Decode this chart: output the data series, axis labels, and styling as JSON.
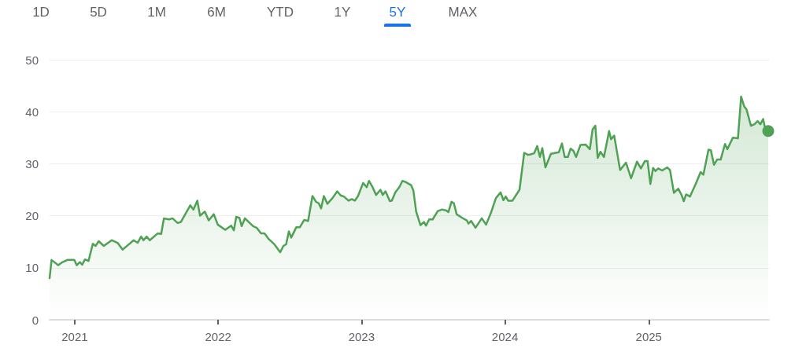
{
  "chart_data": {
    "type": "area",
    "annotations": [
      "1D",
      "5D",
      "1M",
      "6M",
      "YTD",
      "1Y",
      "5Y",
      "MAX"
    ],
    "xlim": [
      "2020-10-29",
      "2025-11-03"
    ],
    "xticks": [
      {
        "value": "2021",
        "label": "2021"
      },
      {
        "value": "2022",
        "label": "2022"
      },
      {
        "value": "2023",
        "label": "2023"
      },
      {
        "value": "2024",
        "label": "2024"
      },
      {
        "value": "2025",
        "label": "2025"
      }
    ],
    "ylim": [
      0,
      50
    ],
    "yticks": [
      0,
      10,
      20,
      30,
      40,
      50
    ],
    "grid": "y",
    "marker": "none",
    "line_style": "solid",
    "series": [
      {
        "color": "#4fa154",
        "x": [
          "2020-10-29",
          "2020-11-03",
          "2020-11-20",
          "2020-11-29",
          "2020-12-13",
          "2020-12-31",
          "2021-01-06",
          "2021-01-14",
          "2021-01-20",
          "2021-01-27",
          "2021-02-05",
          "2021-02-16",
          "2021-02-23",
          "2021-03-03",
          "2021-03-16",
          "2021-04-05",
          "2021-04-20",
          "2021-05-03",
          "2021-05-31",
          "2021-06-10",
          "2021-06-19",
          "2021-06-25",
          "2021-07-03",
          "2021-07-11",
          "2021-07-31",
          "2021-08-09",
          "2021-08-16",
          "2021-08-29",
          "2021-09-07",
          "2021-09-20",
          "2021-09-28",
          "2021-10-22",
          "2021-10-30",
          "2021-11-09",
          "2021-11-16",
          "2021-11-28",
          "2021-12-08",
          "2021-12-21",
          "2021-12-31",
          "2022-01-19",
          "2022-02-03",
          "2022-02-10",
          "2022-02-16",
          "2022-02-24",
          "2022-03-02",
          "2022-03-10",
          "2022-03-31",
          "2022-04-09",
          "2022-04-20",
          "2022-04-29",
          "2022-05-10",
          "2022-05-23",
          "2022-06-08",
          "2022-06-16",
          "2022-06-23",
          "2022-06-30",
          "2022-07-06",
          "2022-07-19",
          "2022-07-28",
          "2022-08-08",
          "2022-08-18",
          "2022-08-29",
          "2022-09-07",
          "2022-09-14",
          "2022-09-20",
          "2022-09-27",
          "2022-10-06",
          "2022-10-19",
          "2022-10-31",
          "2022-11-09",
          "2022-11-17",
          "2022-11-29",
          "2022-12-07",
          "2022-12-15",
          "2022-12-23",
          "2023-01-05",
          "2023-01-14",
          "2023-01-20",
          "2023-01-29",
          "2023-02-07",
          "2023-02-18",
          "2023-02-24",
          "2023-03-03",
          "2023-03-14",
          "2023-03-19",
          "2023-03-28",
          "2023-04-07",
          "2023-04-15",
          "2023-04-23",
          "2023-05-07",
          "2023-05-13",
          "2023-05-20",
          "2023-05-31",
          "2023-06-09",
          "2023-06-14",
          "2023-06-22",
          "2023-07-01",
          "2023-07-14",
          "2023-07-25",
          "2023-08-05",
          "2023-08-10",
          "2023-08-18",
          "2023-08-24",
          "2023-08-31",
          "2023-09-14",
          "2023-09-26",
          "2023-09-30",
          "2023-10-07",
          "2023-10-18",
          "2023-11-03",
          "2023-11-14",
          "2023-11-26",
          "2023-12-09",
          "2023-12-21",
          "2023-12-28",
          "2024-01-03",
          "2024-01-09",
          "2024-01-20",
          "2024-02-07",
          "2024-02-19",
          "2024-02-29",
          "2024-03-06",
          "2024-03-15",
          "2024-03-23",
          "2024-03-30",
          "2024-04-05",
          "2024-04-13",
          "2024-04-27",
          "2024-05-17",
          "2024-05-25",
          "2024-06-01",
          "2024-06-09",
          "2024-06-16",
          "2024-06-23",
          "2024-06-30",
          "2024-07-11",
          "2024-07-24",
          "2024-08-04",
          "2024-08-11",
          "2024-08-18",
          "2024-08-24",
          "2024-08-31",
          "2024-09-09",
          "2024-09-22",
          "2024-09-27",
          "2024-10-05",
          "2024-10-20",
          "2024-11-04",
          "2024-11-17",
          "2024-12-02",
          "2024-12-12",
          "2024-12-22",
          "2024-12-29",
          "2025-01-05",
          "2025-01-12",
          "2025-01-18",
          "2025-01-25",
          "2025-02-04",
          "2025-02-17",
          "2025-02-24",
          "2025-03-06",
          "2025-03-17",
          "2025-03-26",
          "2025-03-31",
          "2025-04-06",
          "2025-04-16",
          "2025-05-01",
          "2025-05-13",
          "2025-05-20",
          "2025-06-02",
          "2025-06-08",
          "2025-06-16",
          "2025-06-24",
          "2025-07-03",
          "2025-07-14",
          "2025-07-20",
          "2025-08-03",
          "2025-08-16",
          "2025-08-24",
          "2025-09-01",
          "2025-09-07",
          "2025-09-18",
          "2025-09-27",
          "2025-10-05",
          "2025-10-12",
          "2025-10-19",
          "2025-10-23",
          "2025-11-01"
        ],
        "values": [
          8.0,
          11.5,
          10.5,
          11.0,
          11.5,
          11.5,
          10.5,
          11.1,
          10.6,
          11.6,
          11.3,
          14.6,
          14.2,
          15.1,
          14.2,
          15.3,
          14.8,
          13.5,
          15.3,
          14.8,
          16.0,
          15.3,
          16.0,
          15.3,
          16.6,
          16.5,
          19.5,
          19.3,
          19.5,
          18.6,
          18.8,
          22.0,
          21.2,
          22.9,
          20.0,
          20.8,
          19.1,
          20.3,
          18.3,
          17.3,
          18.1,
          17.2,
          19.8,
          19.6,
          18.0,
          19.5,
          18.0,
          17.7,
          16.6,
          16.6,
          15.5,
          14.6,
          13.0,
          14.2,
          14.5,
          17.0,
          15.8,
          17.8,
          17.8,
          19.2,
          19.0,
          23.8,
          22.7,
          22.4,
          21.4,
          23.8,
          22.3,
          23.4,
          24.7,
          23.9,
          23.7,
          22.9,
          23.2,
          22.9,
          23.8,
          26.3,
          25.5,
          26.7,
          25.5,
          24.0,
          25.0,
          24.0,
          24.7,
          22.8,
          22.9,
          24.5,
          25.5,
          26.7,
          26.5,
          25.9,
          24.8,
          20.8,
          18.2,
          18.8,
          18.1,
          19.3,
          19.3,
          20.9,
          21.2,
          21.0,
          20.7,
          22.7,
          22.4,
          20.3,
          19.6,
          19.1,
          18.5,
          19.0,
          17.7,
          19.5,
          18.3,
          20.5,
          23.4,
          24.5,
          23.0,
          23.7,
          22.9,
          22.9,
          25.0,
          32.1,
          31.7,
          31.8,
          32.0,
          33.4,
          31.3,
          33.0,
          29.3,
          31.9,
          32.2,
          33.9,
          31.3,
          31.3,
          32.9,
          32.5,
          31.3,
          33.6,
          33.7,
          32.8,
          36.6,
          37.3,
          31.1,
          32.3,
          31.3,
          36.3,
          34.7,
          35.4,
          28.8,
          30.2,
          27.2,
          30.4,
          29.1,
          30.5,
          30.5,
          26.1,
          29.2,
          28.6,
          29.1,
          28.7,
          29.3,
          28.8,
          24.4,
          25.2,
          23.9,
          22.8,
          24.1,
          23.7,
          26.2,
          28.4,
          27.9,
          32.7,
          32.6,
          29.8,
          30.8,
          30.8,
          33.8,
          32.8,
          35.0,
          34.9,
          42.9,
          41.0,
          40.4,
          37.3,
          37.6,
          38.2,
          37.6,
          38.6,
          37.2,
          36.3
        ]
      },
      {
        "type": "scatter",
        "marker": "circle",
        "color": "#4fa154",
        "x": [
          "2025-11-01"
        ],
        "values": [
          36.3
        ]
      }
    ]
  }
}
